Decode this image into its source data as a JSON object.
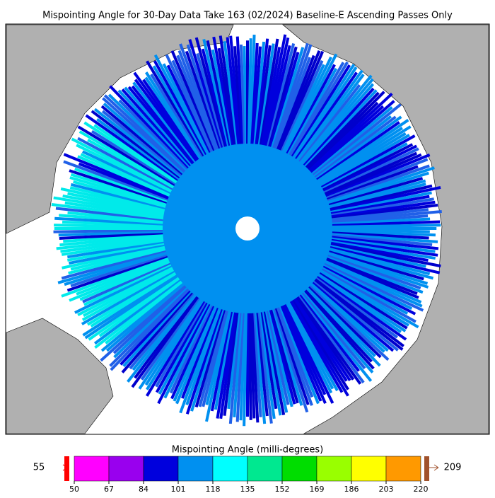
{
  "title": "Mispointing Angle for 30-Day Data Take 163 (02/2024) Baseline-E Ascending Passes Only",
  "colorbar": {
    "label": "Mispointing Angle (milli-degrees)",
    "ticks": [
      50,
      67,
      84,
      101,
      118,
      135,
      152,
      169,
      186,
      203,
      220
    ],
    "colors": [
      "#ff00ff",
      "#9900ee",
      "#0000dd",
      "#0090f0",
      "#00ffff",
      "#00e890",
      "#00dd00",
      "#99ff00",
      "#ffff00",
      "#ff9900"
    ],
    "under_value": 55,
    "under_color": "#ff0000",
    "over_value": 209,
    "over_color": "#a0522d"
  }
}
